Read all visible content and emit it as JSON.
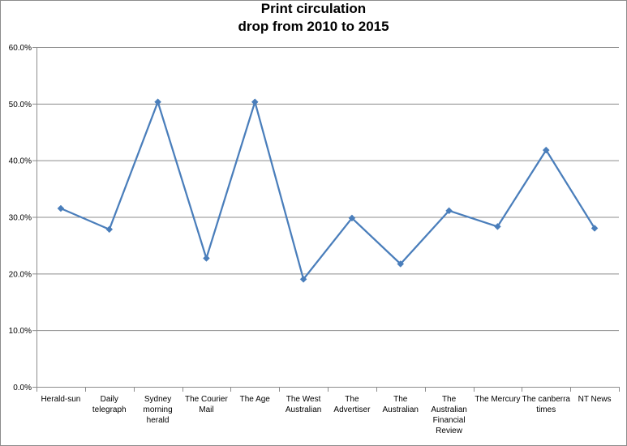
{
  "chart_data": {
    "type": "line",
    "title_lines": [
      "Print circulation",
      "drop from 2010 to 2015"
    ],
    "categories": [
      "Herald-sun",
      "Daily telegraph",
      "Sydney morning herald",
      "The Courier Mail",
      "The Age",
      "The West Australian",
      "The Advertiser",
      "The Australian",
      "The Australian Financial Review",
      "The Mercury",
      "The canberra times",
      "NT News"
    ],
    "category_label_lines": [
      [
        "Herald-sun"
      ],
      [
        "Daily",
        "telegraph"
      ],
      [
        "Sydney",
        "morning",
        "herald"
      ],
      [
        "The Courier",
        "Mail"
      ],
      [
        "The Age"
      ],
      [
        "The West",
        "Australian"
      ],
      [
        "The",
        "Advertiser"
      ],
      [
        "The",
        "Australian"
      ],
      [
        "The",
        "Australian",
        "Financial",
        "Review"
      ],
      [
        "The Mercury"
      ],
      [
        "The canberra",
        "times"
      ],
      [
        "NT News"
      ]
    ],
    "values": [
      31.5,
      27.8,
      50.3,
      22.7,
      50.3,
      19.0,
      29.8,
      21.7,
      31.1,
      28.3,
      41.8,
      28.0
    ],
    "ylim": [
      0,
      60
    ],
    "yticks": [
      0,
      10,
      20,
      30,
      40,
      50,
      60
    ],
    "ytick_labels": [
      "0.0%",
      "10.0%",
      "20.0%",
      "30.0%",
      "40.0%",
      "50.0%",
      "60.0%"
    ],
    "grid": "horizontal",
    "legend": "none",
    "line_color": "#4a7ebb",
    "marker": "diamond",
    "grid_color": "#8c8c8c"
  }
}
